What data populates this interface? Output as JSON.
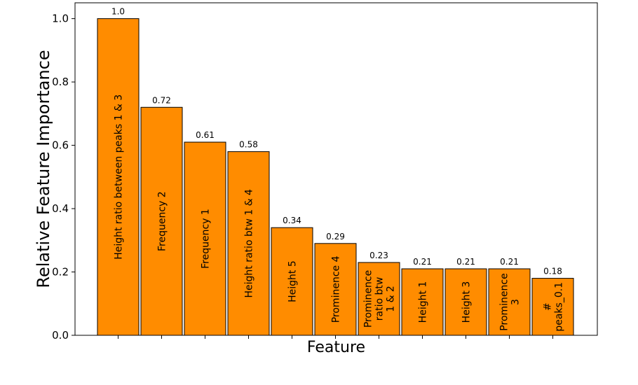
{
  "chart_data": {
    "type": "bar",
    "categories": [
      "Height ratio between peaks 1 & 3",
      "Frequency 2",
      "Frequency 1",
      "Height ratio btw 1 & 4",
      "Height 5",
      "Prominence 4",
      "Prominence ratio btw 1 & 2",
      "Height 1",
      "Height 3",
      "Prominence 3",
      "# peaks_0.1"
    ],
    "bar_label_lines": [
      [
        "Height ratio between peaks 1 & 3"
      ],
      [
        "Frequency 2"
      ],
      [
        "Frequency 1"
      ],
      [
        "Height ratio btw 1 & 4"
      ],
      [
        "Height 5"
      ],
      [
        "Prominence 4"
      ],
      [
        "Prominence",
        "ratio btw",
        "1 & 2"
      ],
      [
        "Height 1"
      ],
      [
        "Height 3"
      ],
      [
        "Prominence",
        "3"
      ],
      [
        "#",
        "peaks_0.1"
      ]
    ],
    "values": [
      1.0,
      0.72,
      0.61,
      0.58,
      0.34,
      0.29,
      0.23,
      0.21,
      0.21,
      0.21,
      0.18
    ],
    "value_labels": [
      "1.0",
      "0.72",
      "0.61",
      "0.58",
      "0.34",
      "0.29",
      "0.23",
      "0.21",
      "0.21",
      "0.21",
      "0.18"
    ],
    "title": "",
    "xlabel": "Feature",
    "ylabel": "Relative Feature Importance",
    "ylim": [
      0,
      1.05
    ],
    "yticks": [
      0.0,
      0.2,
      0.4,
      0.6,
      0.8,
      1.0
    ],
    "ytick_labels": [
      "0.0",
      "0.2",
      "0.4",
      "0.6",
      "0.8",
      "1.0"
    ],
    "grid": false,
    "bar_color": "#ff8c00",
    "bar_edge_color": "#000000"
  }
}
